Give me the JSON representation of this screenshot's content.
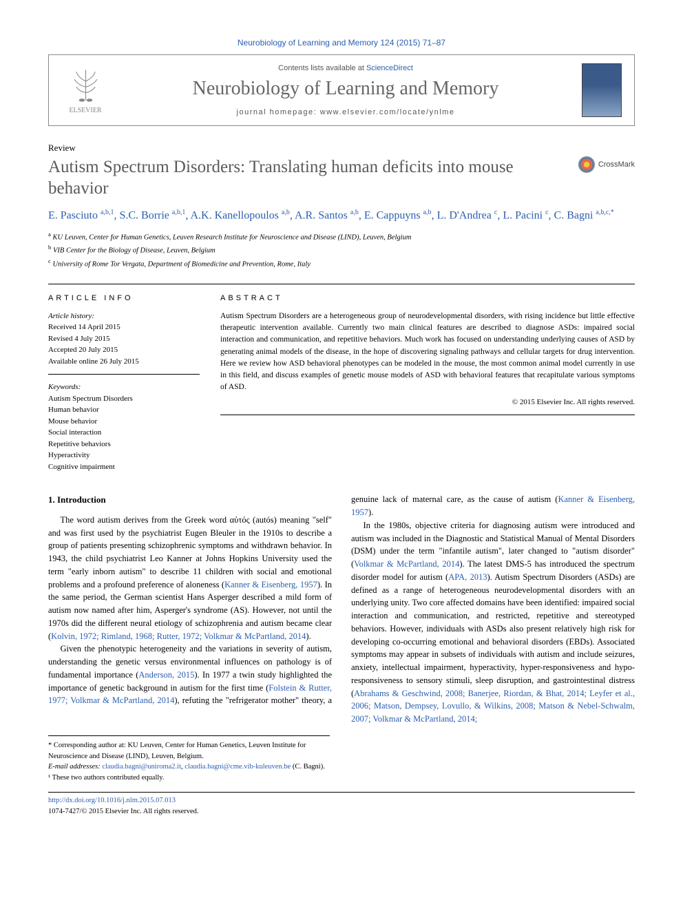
{
  "journal_ref": "Neurobiology of Learning and Memory 124 (2015) 71–87",
  "header": {
    "contents_prefix": "Contents lists available at ",
    "contents_link": "ScienceDirect",
    "journal_name": "Neurobiology of Learning and Memory",
    "homepage": "journal homepage: www.elsevier.com/locate/ynlme",
    "publisher": "ELSEVIER",
    "cover_label": "Neurobiology of Learning and Memory"
  },
  "article_type": "Review",
  "title": "Autism Spectrum Disorders: Translating human deficits into mouse behavior",
  "crossmark": "CrossMark",
  "authors_html": "E. Pasciuto <sup>a,b,1</sup>, S.C. Borrie <sup>a,b,1</sup>, A.K. Kanellopoulos <sup>a,b</sup>, A.R. Santos <sup>a,b</sup>, E. Cappuyns <sup>a,b</sup>, L. D'Andrea <sup>c</sup>, L. Pacini <sup>c</sup>, C. Bagni <sup>a,b,c,*</sup>",
  "affiliations": [
    {
      "key": "a",
      "text": "KU Leuven, Center for Human Genetics, Leuven Research Institute for Neuroscience and Disease (LIND), Leuven, Belgium"
    },
    {
      "key": "b",
      "text": "VIB Center for the Biology of Disease, Leuven, Belgium"
    },
    {
      "key": "c",
      "text": "University of Rome Tor Vergata, Department of Biomedicine and Prevention, Rome, Italy"
    }
  ],
  "info": {
    "label": "ARTICLE INFO",
    "history_heading": "Article history:",
    "history": [
      "Received 14 April 2015",
      "Revised 4 July 2015",
      "Accepted 20 July 2015",
      "Available online 26 July 2015"
    ],
    "keywords_heading": "Keywords:",
    "keywords": [
      "Autism Spectrum Disorders",
      "Human behavior",
      "Mouse behavior",
      "Social interaction",
      "Repetitive behaviors",
      "Hyperactivity",
      "Cognitive impairment"
    ]
  },
  "abstract": {
    "label": "ABSTRACT",
    "text": "Autism Spectrum Disorders are a heterogeneous group of neurodevelopmental disorders, with rising incidence but little effective therapeutic intervention available. Currently two main clinical features are described to diagnose ASDs: impaired social interaction and communication, and repetitive behaviors. Much work has focused on understanding underlying causes of ASD by generating animal models of the disease, in the hope of discovering signaling pathways and cellular targets for drug intervention. Here we review how ASD behavioral phenotypes can be modeled in the mouse, the most common animal model currently in use in this field, and discuss examples of genetic mouse models of ASD with behavioral features that recapitulate various symptoms of ASD.",
    "copyright": "© 2015 Elsevier Inc. All rights reserved."
  },
  "body": {
    "section_heading": "1. Introduction",
    "p1_pre": "The word autism derives from the Greek word αὐτός (autós) meaning \"self\" and was first used by the psychiatrist Eugen Bleuler in the 1910s to describe a group of patients presenting schizophrenic symptoms and withdrawn behavior. In 1943, the child psychiatrist Leo Kanner at Johns Hopkins University used the term \"early inborn autism\" to describe 11 children with social and emotional problems and a profound preference of aloneness (",
    "p1_cite1": "Kanner & Eisenberg, 1957",
    "p1_mid": "). In the same period, the German scientist Hans Asperger described a mild form of autism now named after him, Asperger's syndrome (AS). However, not until the 1970s did the different neural etiology of schizophrenia and autism became clear (",
    "p1_cite2": "Kolvin, 1972; Rimland, 1968; Rutter, 1972; Volkmar & McPartland, 2014",
    "p1_post": ").",
    "p2_pre": "Given the phenotypic heterogeneity and the variations in severity of autism, understanding the genetic versus environmental influences on pathology is of fundamental importance (",
    "p2_cite1": "Anderson, ",
    "p2_col2_cite1": "2015",
    "p2_col2_a": "). In 1977 a twin study highlighted the importance of genetic background in autism for the first time (",
    "p2_col2_cite2": "Folstein & Rutter, 1977; Volkmar & McPartland, 2014",
    "p2_col2_b": "), refuting the \"refrigerator mother\" theory, a genuine lack of maternal care, as the cause of autism (",
    "p2_col2_cite3": "Kanner & Eisenberg, 1957",
    "p2_col2_c": ").",
    "p3_a": "In the 1980s, objective criteria for diagnosing autism were introduced and autism was included in the Diagnostic and Statistical Manual of Mental Disorders (DSM) under the term \"infantile autism\", later changed to \"autism disorder\" (",
    "p3_cite1": "Volkmar & McPartland, 2014",
    "p3_b": "). The latest DMS-5 has introduced the spectrum disorder model for autism (",
    "p3_cite2": "APA, 2013",
    "p3_c": "). Autism Spectrum Disorders (ASDs) are defined as a range of heterogeneous neurodevelopmental disorders with an underlying unity. Two core affected domains have been identified: impaired social interaction and communication, and restricted, repetitive and stereotyped behaviors. However, individuals with ASDs also present relatively high risk for developing co-occurring emotional and behavioral disorders (EBDs). Associated symptoms may appear in subsets of individuals with autism and include seizures, anxiety, intellectual impairment, hyperactivity, hyper-responsiveness and hypo-responsiveness to sensory stimuli, sleep disruption, and gastrointestinal distress (",
    "p3_cite3": "Abrahams & Geschwind, 2008; Banerjee, Riordan, & Bhat, 2014; Leyfer et al., 2006; Matson, Dempsey, Lovullo, & Wilkins, 2008; Matson & Nebel-Schwalm, 2007; Volkmar & McPartland, 2014;"
  },
  "footnotes": {
    "corresponding": "* Corresponding author at: KU Leuven, Center for Human Genetics, Leuven Institute for Neuroscience and Disease (LIND), Leuven, Belgium.",
    "email_label": "E-mail addresses: ",
    "email1": "claudia.bagni@uniroma2.it",
    "email_sep": ", ",
    "email2": "claudia.bagni@cme.vib-kuleuven.be",
    "email_post": " (C. Bagni).",
    "note1": "¹ These two authors contributed equally."
  },
  "bottom": {
    "doi": "http://dx.doi.org/10.1016/j.nlm.2015.07.013",
    "issn_copy": "1074-7427/© 2015 Elsevier Inc. All rights reserved."
  },
  "colors": {
    "link": "#2a5db0",
    "title_gray": "#5a5a5a",
    "journal_gray": "#666666"
  }
}
